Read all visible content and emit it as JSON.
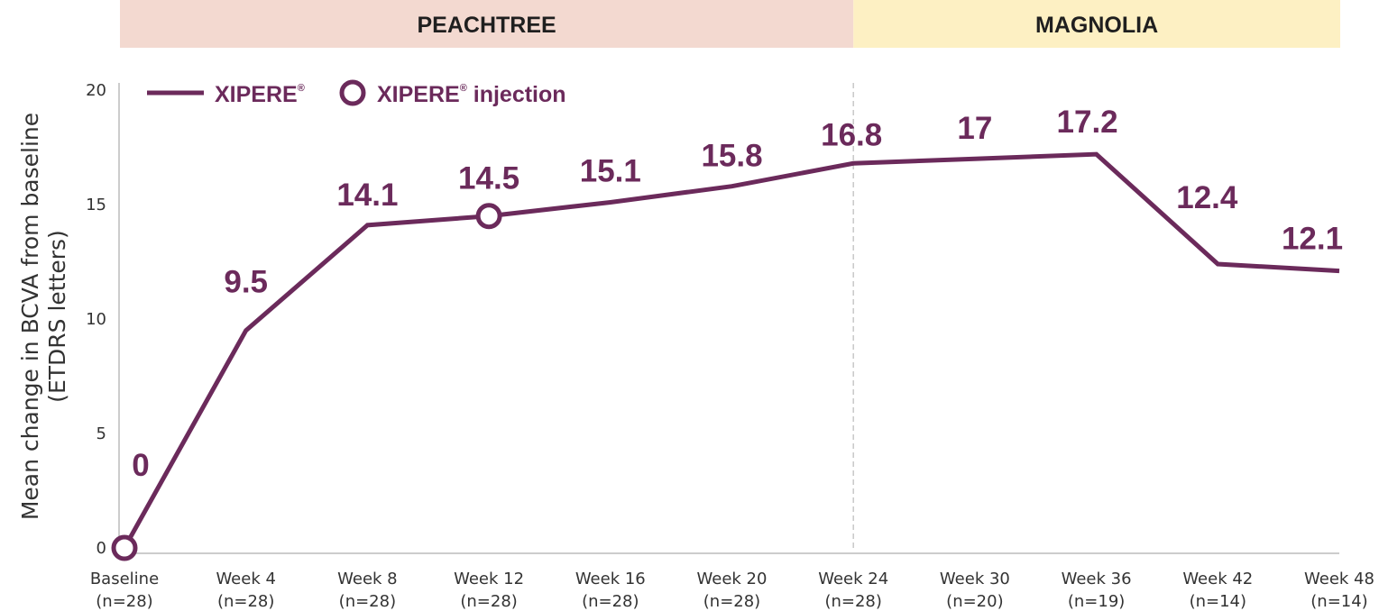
{
  "bands": [
    {
      "label": "PEACHTREE",
      "color": "#f3d9d0",
      "from_index": 0,
      "to_index": 6
    },
    {
      "label": "MAGNOLIA",
      "color": "#fdf0c3",
      "from_index": 6,
      "to_index": 10
    }
  ],
  "legend": {
    "line_label": "XIPERE",
    "marker_label_main": "XIPERE",
    "marker_label_rest": " injection",
    "superscript": "®"
  },
  "colors": {
    "series": "#6b2a5b",
    "axis": "#cccccc",
    "divider": "#c8c8c8"
  },
  "chart_data": {
    "type": "line",
    "ylabel_line1": "Mean change in BCVA from baseline",
    "ylabel_line2": "(ETDRS letters)",
    "ylim": [
      0,
      20
    ],
    "yticks": [
      "0",
      "5",
      "10",
      "15",
      "20"
    ],
    "categories": [
      {
        "name": "Baseline",
        "n": "(n=28)"
      },
      {
        "name": "Week 4",
        "n": "(n=28)"
      },
      {
        "name": "Week 8",
        "n": "(n=28)"
      },
      {
        "name": "Week 12",
        "n": "(n=28)"
      },
      {
        "name": "Week 16",
        "n": "(n=28)"
      },
      {
        "name": "Week 20",
        "n": "(n=28)"
      },
      {
        "name": "Week 24",
        "n": "(n=28)"
      },
      {
        "name": "Week 30",
        "n": "(n=20)"
      },
      {
        "name": "Week 36",
        "n": "(n=19)"
      },
      {
        "name": "Week 42",
        "n": "(n=14)"
      },
      {
        "name": "Week 48",
        "n": "(n=14)"
      }
    ],
    "series": [
      {
        "name": "XIPERE",
        "values": [
          0,
          9.5,
          14.1,
          14.5,
          15.1,
          15.8,
          16.8,
          17,
          17.2,
          12.4,
          12.1
        ],
        "labels": [
          "0",
          "9.5",
          "14.1",
          "14.5",
          "15.1",
          "15.8",
          "16.8",
          "17",
          "17.2",
          "12.4",
          "12.1"
        ]
      }
    ],
    "injection_indices": [
      0,
      3
    ],
    "divider_index": 6,
    "legend_position": "top-left",
    "grid": false
  }
}
